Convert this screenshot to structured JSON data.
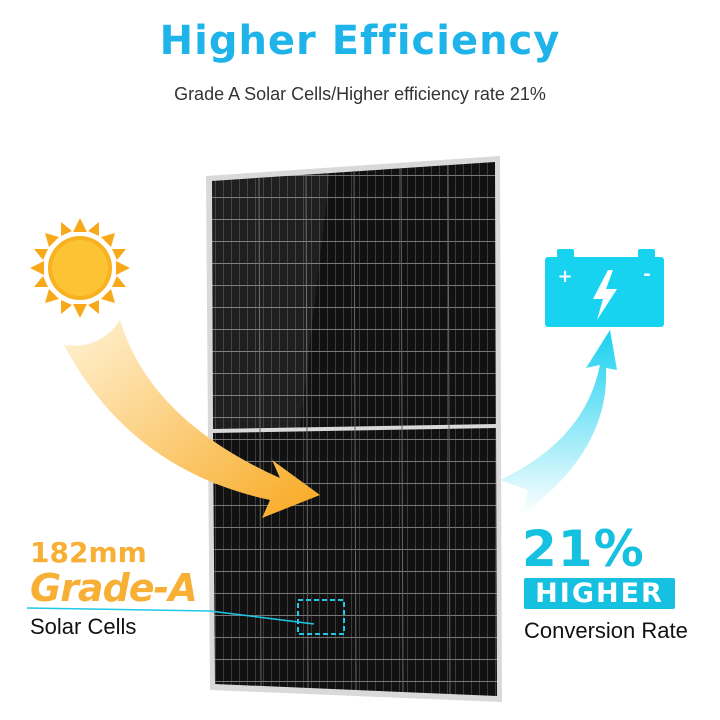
{
  "header": {
    "title": "Higher Efficiency",
    "subtitle": "Grade A Solar Cells/Higher efficiency rate 21%"
  },
  "left_callout": {
    "size": "182mm",
    "grade": "Grade-A",
    "label": "Solar Cells"
  },
  "right_callout": {
    "percent": "21%",
    "badge": "HIGHER",
    "label": "Conversion Rate"
  },
  "icons": {
    "sun": "sun-icon",
    "battery": "battery-icon"
  },
  "colors": {
    "accent_blue": "#16c0e0",
    "accent_orange": "#f7b035",
    "title_blue": "#1eb4ea"
  }
}
